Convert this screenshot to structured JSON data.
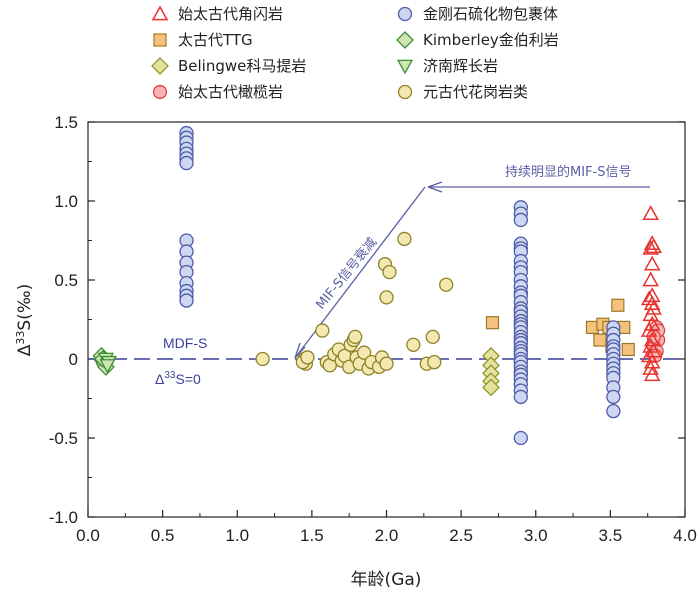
{
  "chart_data": {
    "type": "scatter",
    "xlabel": "年龄(Ga)",
    "ylabel": "Δ33S(‰)",
    "xlim": [
      0,
      4.0
    ],
    "ylim": [
      -1.0,
      1.5
    ],
    "xticks": [
      "0.0",
      "0.5",
      "1.0",
      "1.5",
      "2.0",
      "2.5",
      "3.0",
      "3.5",
      "4.0"
    ],
    "yticks": [
      "1.5",
      "1.0",
      "0.5",
      "0",
      "-0.5",
      "-1.0"
    ],
    "grid": false,
    "legend_position": "top",
    "colors": {
      "red": "#e8322d",
      "orange_fill": "#f4c27c",
      "orange_edge": "#9a7a2a",
      "olive_fill": "#e3e39a",
      "olive_edge": "#8d8d2c",
      "pink_fill": "#f6b3b3",
      "pink_edge": "#e03a3a",
      "blue_fill": "#cdd6f2",
      "blue_edge": "#4e5ca6",
      "green_fill": "#cfe6b4",
      "green_edge": "#3e8e34",
      "khaki_fill": "#f2e8b0",
      "khaki_edge": "#8f8228",
      "annotation": "#5b5ea6",
      "baseline": "#3b3f9a"
    },
    "series": [
      {
        "name": "始太古代角闪岩",
        "marker": "triangle-up",
        "points": [
          [
            3.77,
            0.92
          ],
          [
            3.78,
            0.73
          ],
          [
            3.77,
            0.7
          ],
          [
            3.79,
            0.71
          ],
          [
            3.78,
            0.6
          ],
          [
            3.77,
            0.5
          ],
          [
            3.78,
            0.4
          ],
          [
            3.76,
            0.38
          ],
          [
            3.78,
            0.35
          ],
          [
            3.79,
            0.32
          ],
          [
            3.77,
            0.28
          ],
          [
            3.78,
            0.22
          ],
          [
            3.76,
            0.18
          ],
          [
            3.78,
            0.12
          ],
          [
            3.77,
            0.08
          ],
          [
            3.79,
            0.05
          ],
          [
            3.76,
            0.02
          ],
          [
            3.78,
            -0.02
          ],
          [
            3.77,
            -0.06
          ],
          [
            3.78,
            -0.1
          ]
        ]
      },
      {
        "name": "太古代TTG",
        "marker": "square",
        "points": [
          [
            2.71,
            0.23
          ],
          [
            3.38,
            0.2
          ],
          [
            3.45,
            0.22
          ],
          [
            3.49,
            0.2
          ],
          [
            3.55,
            0.34
          ],
          [
            3.59,
            0.2
          ],
          [
            3.62,
            0.06
          ],
          [
            3.43,
            0.12
          ],
          [
            3.51,
            0.08
          ]
        ]
      },
      {
        "name": "Belingwe科马提岩",
        "marker": "diamond",
        "points": [
          [
            2.7,
            0.02
          ],
          [
            2.7,
            -0.04
          ],
          [
            2.7,
            -0.09
          ],
          [
            2.7,
            -0.14
          ],
          [
            2.7,
            -0.18
          ]
        ]
      },
      {
        "name": "始太古代橄榄岩",
        "marker": "circle",
        "points": [
          [
            3.81,
            0.2
          ],
          [
            3.8,
            0.16
          ],
          [
            3.82,
            0.12
          ],
          [
            3.79,
            0.08
          ],
          [
            3.81,
            0.05
          ],
          [
            3.8,
            0.02
          ],
          [
            3.82,
            0.18
          ],
          [
            3.79,
            0.14
          ]
        ]
      },
      {
        "name": "金刚石硫化物包裹体",
        "marker": "circle",
        "points": [
          [
            0.66,
            1.43
          ],
          [
            0.66,
            1.4
          ],
          [
            0.66,
            1.37
          ],
          [
            0.66,
            1.33
          ],
          [
            0.66,
            1.3
          ],
          [
            0.66,
            1.27
          ],
          [
            0.66,
            1.24
          ],
          [
            0.66,
            0.75
          ],
          [
            0.66,
            0.68
          ],
          [
            0.66,
            0.61
          ],
          [
            0.66,
            0.55
          ],
          [
            0.66,
            0.48
          ],
          [
            0.66,
            0.43
          ],
          [
            0.66,
            0.4
          ],
          [
            0.66,
            0.37
          ],
          [
            2.9,
            0.96
          ],
          [
            2.9,
            0.92
          ],
          [
            2.9,
            0.88
          ],
          [
            2.9,
            0.73
          ],
          [
            2.9,
            0.7
          ],
          [
            2.9,
            0.68
          ],
          [
            2.9,
            0.62
          ],
          [
            2.9,
            0.58
          ],
          [
            2.9,
            0.55
          ],
          [
            2.9,
            0.5
          ],
          [
            2.9,
            0.46
          ],
          [
            2.9,
            0.42
          ],
          [
            2.9,
            0.4
          ],
          [
            2.9,
            0.36
          ],
          [
            2.9,
            0.32
          ],
          [
            2.9,
            0.3
          ],
          [
            2.9,
            0.27
          ],
          [
            2.9,
            0.24
          ],
          [
            2.9,
            0.22
          ],
          [
            2.9,
            0.2
          ],
          [
            2.9,
            0.17
          ],
          [
            2.9,
            0.14
          ],
          [
            2.9,
            0.12
          ],
          [
            2.9,
            0.1
          ],
          [
            2.9,
            0.07
          ],
          [
            2.9,
            0.05
          ],
          [
            2.9,
            0.03
          ],
          [
            2.9,
            0.0
          ],
          [
            2.9,
            -0.02
          ],
          [
            2.9,
            -0.05
          ],
          [
            2.9,
            -0.08
          ],
          [
            2.9,
            -0.1
          ],
          [
            2.9,
            -0.13
          ],
          [
            2.9,
            -0.16
          ],
          [
            2.9,
            -0.2
          ],
          [
            2.9,
            -0.24
          ],
          [
            2.9,
            -0.5
          ],
          [
            3.52,
            0.2
          ],
          [
            3.52,
            0.16
          ],
          [
            3.52,
            0.12
          ],
          [
            3.52,
            0.08
          ],
          [
            3.52,
            0.06
          ],
          [
            3.52,
            0.03
          ],
          [
            3.52,
            0.0
          ],
          [
            3.52,
            -0.03
          ],
          [
            3.52,
            -0.06
          ],
          [
            3.52,
            -0.09
          ],
          [
            3.52,
            -0.12
          ],
          [
            3.52,
            -0.18
          ],
          [
            3.52,
            -0.24
          ],
          [
            3.52,
            -0.33
          ]
        ]
      },
      {
        "name": "Kimberley金伯利岩",
        "marker": "diamond",
        "points": [
          [
            0.09,
            0.02
          ],
          [
            0.1,
            -0.01
          ],
          [
            0.11,
            -0.03
          ],
          [
            0.12,
            -0.05
          ],
          [
            0.1,
            0.0
          ]
        ]
      },
      {
        "name": "济南辉长岩",
        "marker": "triangle-down",
        "points": [
          [
            0.12,
            0.0
          ],
          [
            0.14,
            -0.02
          ],
          [
            0.13,
            -0.04
          ]
        ]
      },
      {
        "name": "元古代花岗岩类",
        "marker": "circle",
        "points": [
          [
            1.17,
            0.0
          ],
          [
            1.45,
            0.0
          ],
          [
            1.46,
            -0.03
          ],
          [
            1.44,
            -0.02
          ],
          [
            1.47,
            0.01
          ],
          [
            1.57,
            0.18
          ],
          [
            1.6,
            -0.02
          ],
          [
            1.62,
            -0.04
          ],
          [
            1.65,
            0.03
          ],
          [
            1.68,
            0.06
          ],
          [
            1.7,
            -0.01
          ],
          [
            1.72,
            0.02
          ],
          [
            1.75,
            -0.05
          ],
          [
            1.76,
            0.09
          ],
          [
            1.78,
            0.12
          ],
          [
            1.79,
            0.14
          ],
          [
            1.8,
            0.01
          ],
          [
            1.82,
            -0.03
          ],
          [
            1.85,
            0.04
          ],
          [
            1.88,
            -0.06
          ],
          [
            1.9,
            -0.02
          ],
          [
            1.95,
            -0.05
          ],
          [
            1.97,
            0.01
          ],
          [
            2.0,
            -0.03
          ],
          [
            2.0,
            0.39
          ],
          [
            1.99,
            0.6
          ],
          [
            2.02,
            0.55
          ],
          [
            2.12,
            0.76
          ],
          [
            2.18,
            0.09
          ],
          [
            2.27,
            -0.03
          ],
          [
            2.31,
            0.14
          ],
          [
            2.32,
            -0.02
          ],
          [
            2.4,
            0.47
          ]
        ]
      }
    ],
    "annotations": {
      "mdf_label": "MDF-S",
      "baseline_label": "Δ33S=0",
      "trend_up_label": "持续明显的MIF-S信号",
      "trend_down_label": "MIF-S信号衰减"
    }
  }
}
